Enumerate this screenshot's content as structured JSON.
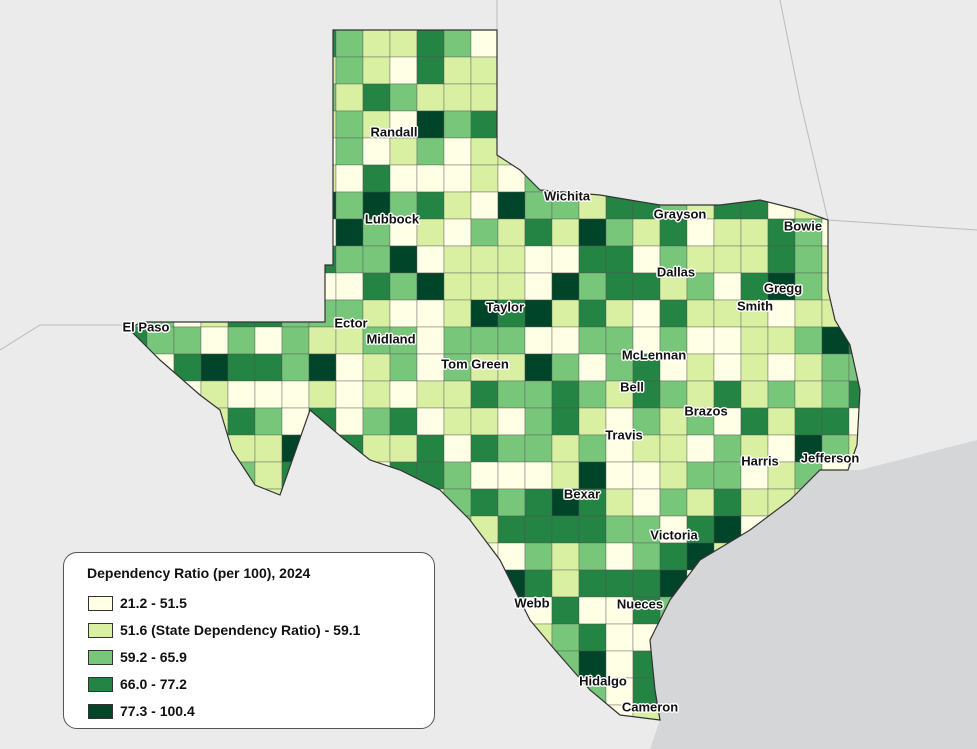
{
  "legend": {
    "title": "Dependency Ratio (per 100), 2024",
    "classes": [
      {
        "label": "21.2 - 51.5",
        "color": "#ffffe5"
      },
      {
        "label": "51.6 (State Dependency Ratio) - 59.1",
        "color": "#d9f0a3"
      },
      {
        "label": "59.2 - 65.9",
        "color": "#78c679"
      },
      {
        "label": "66.0 - 77.2",
        "color": "#238443"
      },
      {
        "label": "77.3 - 100.4",
        "color": "#004529"
      }
    ]
  },
  "counties": [
    "Randall",
    "Lubbock",
    "Wichita",
    "Grayson",
    "Bowie",
    "Dallas",
    "Gregg",
    "Smith",
    "El Paso",
    "Ector",
    "Midland",
    "Taylor",
    "Tom Green",
    "McLennan",
    "Bell",
    "Brazos",
    "Travis",
    "Harris",
    "Jefferson",
    "Bexar",
    "Victoria",
    "Webb",
    "Nueces",
    "Hidalgo",
    "Cameron"
  ],
  "colors": {
    "land": "#ebebeb",
    "water": "#d4d6d8",
    "border": "#333333"
  }
}
